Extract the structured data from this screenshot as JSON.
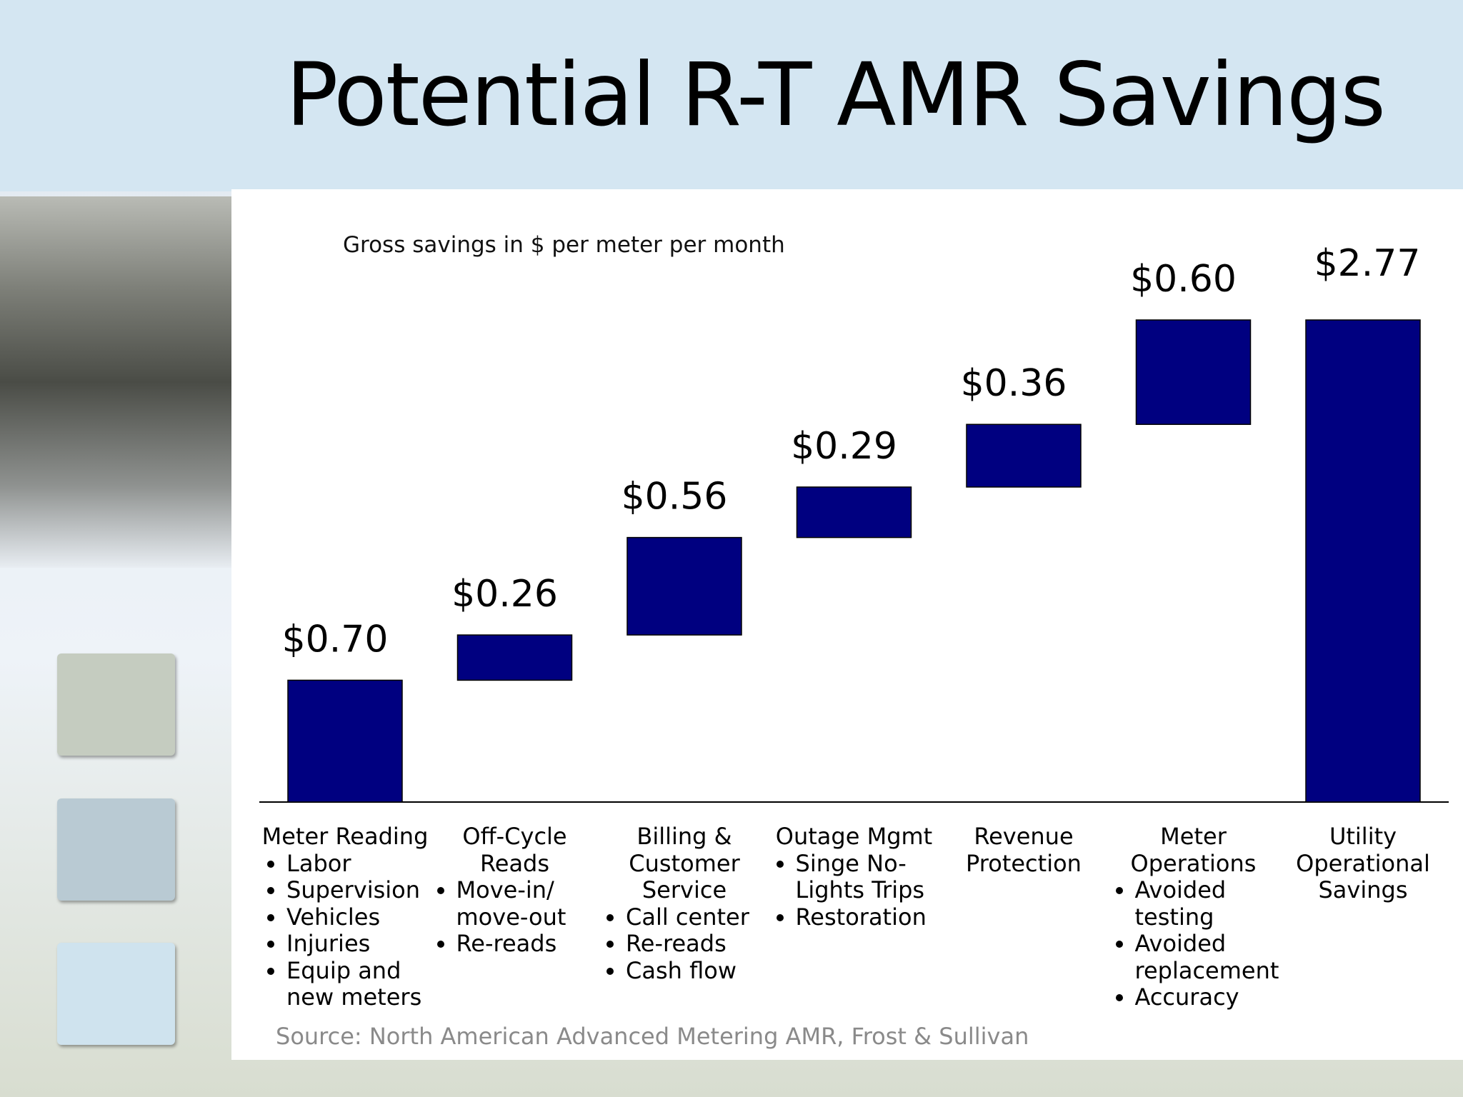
{
  "chart_data": {
    "type": "waterfall",
    "title": "Potential R-T AMR Savings",
    "subtitle": "Gross savings in $ per meter per month",
    "source": "Source: North American Advanced Metering AMR, Frost & Sullivan",
    "categories": [
      "Meter Reading",
      "Off-Cycle Reads",
      "Billing & Customer Service",
      "Outage Mgmt",
      "Revenue Protection",
      "Meter Operations",
      "Utility Operational Savings"
    ],
    "details": [
      [
        "Labor",
        "Supervision",
        "Vehicles",
        "Injuries",
        "Equip and new meters"
      ],
      [
        "Move-in/ move-out",
        "Re-reads"
      ],
      [
        "Call center",
        "Re-reads",
        "Cash flow"
      ],
      [
        "Singe No-Lights Trips",
        "Restoration"
      ],
      [],
      [
        "Avoided testing",
        "Avoided replacement",
        "Accuracy"
      ],
      []
    ],
    "values": [
      0.7,
      0.26,
      0.56,
      0.29,
      0.36,
      0.6,
      2.77
    ],
    "value_labels": [
      "$0.70",
      "$0.26",
      "$0.56",
      "$0.29",
      "$0.36",
      "$0.60",
      "$2.77"
    ],
    "is_total": [
      false,
      false,
      false,
      false,
      false,
      false,
      true
    ],
    "color": "#000080"
  }
}
